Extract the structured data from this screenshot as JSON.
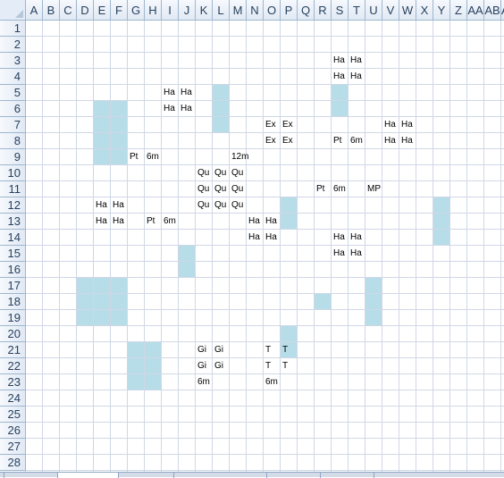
{
  "columns": [
    "A",
    "B",
    "C",
    "D",
    "E",
    "F",
    "G",
    "H",
    "I",
    "J",
    "K",
    "L",
    "M",
    "N",
    "O",
    "P",
    "Q",
    "R",
    "S",
    "T",
    "U",
    "V",
    "W",
    "X",
    "Y",
    "Z",
    "AA",
    "AB",
    "AC"
  ],
  "rows": [
    "1",
    "2",
    "3",
    "4",
    "5",
    "6",
    "7",
    "8",
    "9",
    "10",
    "11",
    "12",
    "13",
    "14",
    "15",
    "16",
    "17",
    "18",
    "19",
    "20",
    "21",
    "22",
    "23",
    "24",
    "25",
    "26",
    "27",
    "28"
  ],
  "highlight_color": "#b6dde8",
  "shaded_regions": [
    {
      "range": "E6:F9"
    },
    {
      "range": "L5:L7"
    },
    {
      "range": "S5:S6"
    },
    {
      "range": "P12:P13"
    },
    {
      "range": "Y12:Y14"
    },
    {
      "range": "J15:J16"
    },
    {
      "range": "D17:F19"
    },
    {
      "range": "U17:U19"
    },
    {
      "range": "R18:R18"
    },
    {
      "range": "P20:P21"
    },
    {
      "range": "G21:H23"
    }
  ],
  "cells": [
    {
      "ref": "S3",
      "text": "Ha"
    },
    {
      "ref": "T3",
      "text": "Ha"
    },
    {
      "ref": "S4",
      "text": "Ha"
    },
    {
      "ref": "T4",
      "text": "Ha"
    },
    {
      "ref": "I5",
      "text": "Ha"
    },
    {
      "ref": "J5",
      "text": "Ha"
    },
    {
      "ref": "I6",
      "text": "Ha"
    },
    {
      "ref": "J6",
      "text": "Ha"
    },
    {
      "ref": "O7",
      "text": "Ex"
    },
    {
      "ref": "P7",
      "text": "Ex"
    },
    {
      "ref": "V7",
      "text": "Ha"
    },
    {
      "ref": "W7",
      "text": "Ha"
    },
    {
      "ref": "O8",
      "text": "Ex"
    },
    {
      "ref": "P8",
      "text": "Ex"
    },
    {
      "ref": "S8",
      "text": "Pt"
    },
    {
      "ref": "T8",
      "text": "6m"
    },
    {
      "ref": "V8",
      "text": "Ha"
    },
    {
      "ref": "W8",
      "text": "Ha"
    },
    {
      "ref": "G9",
      "text": "Pt"
    },
    {
      "ref": "H9",
      "text": "6m"
    },
    {
      "ref": "M9",
      "text": "12m"
    },
    {
      "ref": "K10",
      "text": "Qu"
    },
    {
      "ref": "L10",
      "text": "Qu"
    },
    {
      "ref": "M10",
      "text": "Qu"
    },
    {
      "ref": "K11",
      "text": "Qu"
    },
    {
      "ref": "L11",
      "text": "Qu"
    },
    {
      "ref": "M11",
      "text": "Qu"
    },
    {
      "ref": "R11",
      "text": "Pt"
    },
    {
      "ref": "S11",
      "text": "6m"
    },
    {
      "ref": "U11",
      "text": "MP"
    },
    {
      "ref": "E12",
      "text": "Ha"
    },
    {
      "ref": "F12",
      "text": "Ha"
    },
    {
      "ref": "K12",
      "text": "Qu"
    },
    {
      "ref": "L12",
      "text": "Qu"
    },
    {
      "ref": "M12",
      "text": "Qu"
    },
    {
      "ref": "E13",
      "text": "Ha"
    },
    {
      "ref": "F13",
      "text": "Ha"
    },
    {
      "ref": "H13",
      "text": "Pt"
    },
    {
      "ref": "I13",
      "text": "6m"
    },
    {
      "ref": "N13",
      "text": "Ha"
    },
    {
      "ref": "O13",
      "text": "Ha"
    },
    {
      "ref": "N14",
      "text": "Ha"
    },
    {
      "ref": "O14",
      "text": "Ha"
    },
    {
      "ref": "S14",
      "text": "Ha"
    },
    {
      "ref": "T14",
      "text": "Ha"
    },
    {
      "ref": "S15",
      "text": "Ha"
    },
    {
      "ref": "T15",
      "text": "Ha"
    },
    {
      "ref": "K21",
      "text": "Gi"
    },
    {
      "ref": "L21",
      "text": "Gi"
    },
    {
      "ref": "O21",
      "text": "T"
    },
    {
      "ref": "P21",
      "text": "T"
    },
    {
      "ref": "K22",
      "text": "Gi"
    },
    {
      "ref": "L22",
      "text": "Gi"
    },
    {
      "ref": "O22",
      "text": "T"
    },
    {
      "ref": "P22",
      "text": "T"
    },
    {
      "ref": "K23",
      "text": "6m"
    },
    {
      "ref": "O23",
      "text": "6m"
    }
  ]
}
